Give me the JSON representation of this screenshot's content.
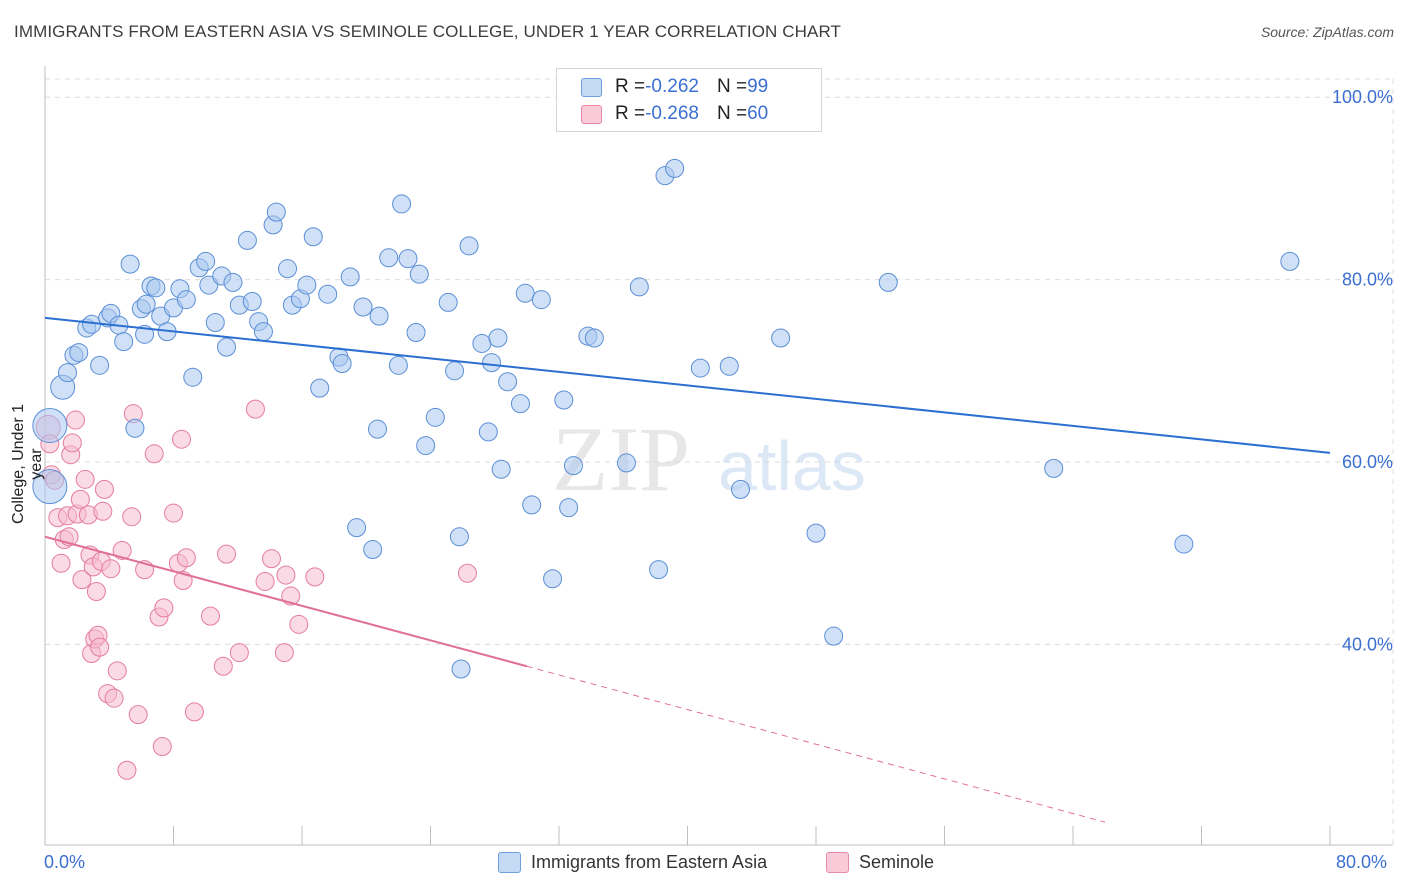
{
  "title": "IMMIGRANTS FROM EASTERN ASIA VS SEMINOLE COLLEGE, UNDER 1 YEAR CORRELATION CHART",
  "source": "Source: ZipAtlas.com",
  "watermark": {
    "zip": "ZIP",
    "atlas": "atlas"
  },
  "legend": [
    {
      "r_label": "R = ",
      "r_value": "-0.262",
      "n_label": "N = ",
      "n_value": "99",
      "color": "#a8c8f0"
    },
    {
      "r_label": "R = ",
      "r_value": "-0.268",
      "n_label": "N = ",
      "n_value": "60",
      "color": "#f5b8c8"
    }
  ],
  "series_names": [
    "Immigrants from Eastern Asia",
    "Seminole"
  ],
  "colors": {
    "blue_fill": "#aac8f0",
    "blue_stroke": "#5b8fd6",
    "blue_line": "#2b6fd1",
    "pink_fill": "#f6bccd",
    "pink_stroke": "#e57d9e",
    "pink_line": "#e0709a",
    "axis_text": "#3b6fd0",
    "grid": "#dcdcdc"
  },
  "chart_data": {
    "type": "scatter",
    "title": "IMMIGRANTS FROM EASTERN ASIA VS SEMINOLE COLLEGE, UNDER 1 YEAR CORRELATION CHART",
    "xlabel": "",
    "ylabel": "College, Under 1 year",
    "xlim": [
      0,
      80
    ],
    "ylim": [
      18,
      102
    ],
    "x_tick_labels": [
      "0.0%",
      "80.0%"
    ],
    "y_tick_values": [
      40,
      60,
      80,
      100
    ],
    "y_tick_labels": [
      "40.0%",
      "60.0%",
      "80.0%",
      "100.0%"
    ],
    "grid": true,
    "legend_position": "top-center",
    "series": [
      {
        "name": "Immigrants from Eastern Asia",
        "trend": {
          "x": [
            0,
            80
          ],
          "y": [
            75.8,
            61.0
          ]
        },
        "points": [
          [
            0.3,
            64.0
          ],
          [
            0.3,
            57.3
          ],
          [
            1.1,
            68.2
          ],
          [
            1.4,
            69.8
          ],
          [
            1.8,
            71.7
          ],
          [
            2.1,
            72.0
          ],
          [
            2.6,
            74.7
          ],
          [
            2.9,
            75.1
          ],
          [
            3.4,
            70.6
          ],
          [
            3.9,
            75.8
          ],
          [
            4.1,
            76.3
          ],
          [
            4.6,
            75.0
          ],
          [
            4.9,
            73.2
          ],
          [
            5.3,
            81.7
          ],
          [
            5.6,
            63.7
          ],
          [
            6.0,
            76.8
          ],
          [
            6.2,
            74.0
          ],
          [
            6.3,
            77.3
          ],
          [
            6.6,
            79.3
          ],
          [
            6.9,
            79.1
          ],
          [
            7.2,
            76.0
          ],
          [
            7.6,
            74.3
          ],
          [
            8.0,
            76.9
          ],
          [
            8.4,
            79.0
          ],
          [
            8.8,
            77.8
          ],
          [
            9.2,
            69.3
          ],
          [
            9.6,
            81.3
          ],
          [
            10.0,
            82.0
          ],
          [
            10.2,
            79.4
          ],
          [
            10.6,
            75.3
          ],
          [
            11.0,
            80.4
          ],
          [
            11.3,
            72.6
          ],
          [
            11.7,
            79.7
          ],
          [
            12.1,
            77.2
          ],
          [
            12.6,
            84.3
          ],
          [
            12.9,
            77.6
          ],
          [
            13.3,
            75.4
          ],
          [
            13.6,
            74.3
          ],
          [
            14.2,
            86.0
          ],
          [
            14.4,
            87.4
          ],
          [
            15.1,
            81.2
          ],
          [
            15.4,
            77.2
          ],
          [
            15.9,
            77.9
          ],
          [
            16.3,
            79.4
          ],
          [
            16.7,
            84.7
          ],
          [
            17.1,
            68.1
          ],
          [
            17.6,
            78.4
          ],
          [
            18.3,
            71.5
          ],
          [
            18.5,
            70.8
          ],
          [
            19.0,
            80.3
          ],
          [
            19.4,
            52.8
          ],
          [
            19.8,
            77.0
          ],
          [
            20.4,
            50.4
          ],
          [
            20.7,
            63.6
          ],
          [
            20.8,
            76.0
          ],
          [
            21.4,
            82.4
          ],
          [
            22.0,
            70.6
          ],
          [
            22.2,
            88.3
          ],
          [
            22.6,
            82.3
          ],
          [
            23.1,
            74.2
          ],
          [
            23.3,
            80.6
          ],
          [
            23.7,
            61.8
          ],
          [
            24.3,
            64.9
          ],
          [
            25.1,
            77.5
          ],
          [
            25.5,
            70.0
          ],
          [
            25.8,
            51.8
          ],
          [
            26.4,
            83.7
          ],
          [
            27.2,
            73.0
          ],
          [
            27.6,
            63.3
          ],
          [
            27.8,
            70.9
          ],
          [
            28.2,
            73.6
          ],
          [
            28.4,
            59.2
          ],
          [
            28.8,
            68.8
          ],
          [
            29.6,
            66.4
          ],
          [
            29.9,
            78.5
          ],
          [
            30.3,
            55.3
          ],
          [
            30.9,
            77.8
          ],
          [
            31.6,
            47.2
          ],
          [
            32.3,
            66.8
          ],
          [
            32.6,
            55.0
          ],
          [
            32.9,
            59.6
          ],
          [
            33.8,
            73.8
          ],
          [
            34.2,
            73.6
          ],
          [
            36.2,
            59.9
          ],
          [
            37.0,
            79.2
          ],
          [
            38.2,
            48.2
          ],
          [
            38.6,
            91.4
          ],
          [
            39.2,
            92.2
          ],
          [
            40.8,
            70.3
          ],
          [
            42.6,
            70.5
          ],
          [
            43.3,
            57.0
          ],
          [
            45.8,
            73.6
          ],
          [
            48.0,
            52.2
          ],
          [
            49.1,
            40.9
          ],
          [
            52.5,
            79.7
          ],
          [
            62.8,
            59.3
          ],
          [
            70.9,
            51.0
          ],
          [
            77.5,
            82.0
          ],
          [
            25.9,
            37.3
          ]
        ]
      },
      {
        "name": "Seminole",
        "trend": {
          "x": [
            0,
            30
          ],
          "y": [
            51.8,
            37.6
          ]
        },
        "trend_extension": {
          "x": [
            30,
            66
          ],
          "y": [
            37.6,
            20.5
          ]
        },
        "points": [
          [
            0.2,
            63.8
          ],
          [
            0.3,
            62.0
          ],
          [
            0.4,
            58.6
          ],
          [
            0.6,
            58.0
          ],
          [
            0.8,
            53.9
          ],
          [
            1.0,
            48.9
          ],
          [
            1.2,
            51.5
          ],
          [
            1.4,
            54.1
          ],
          [
            1.5,
            51.8
          ],
          [
            1.6,
            60.8
          ],
          [
            1.7,
            62.1
          ],
          [
            1.9,
            64.6
          ],
          [
            2.0,
            54.3
          ],
          [
            2.2,
            55.9
          ],
          [
            2.3,
            47.1
          ],
          [
            2.5,
            58.1
          ],
          [
            2.7,
            54.2
          ],
          [
            2.8,
            49.8
          ],
          [
            2.9,
            39.0
          ],
          [
            3.0,
            48.5
          ],
          [
            3.1,
            40.6
          ],
          [
            3.2,
            45.8
          ],
          [
            3.3,
            41.0
          ],
          [
            3.4,
            39.7
          ],
          [
            3.5,
            49.1
          ],
          [
            3.6,
            54.6
          ],
          [
            3.7,
            57.0
          ],
          [
            3.9,
            34.6
          ],
          [
            4.1,
            48.3
          ],
          [
            4.3,
            34.1
          ],
          [
            4.5,
            37.1
          ],
          [
            4.8,
            50.3
          ],
          [
            5.1,
            26.2
          ],
          [
            5.4,
            54.0
          ],
          [
            5.5,
            65.3
          ],
          [
            5.8,
            32.3
          ],
          [
            6.2,
            48.2
          ],
          [
            6.8,
            60.9
          ],
          [
            7.1,
            43.0
          ],
          [
            7.3,
            28.8
          ],
          [
            7.4,
            44.0
          ],
          [
            8.0,
            54.4
          ],
          [
            8.3,
            48.9
          ],
          [
            8.5,
            62.5
          ],
          [
            8.6,
            47.0
          ],
          [
            8.8,
            49.5
          ],
          [
            9.3,
            32.6
          ],
          [
            10.3,
            43.1
          ],
          [
            11.1,
            37.6
          ],
          [
            11.3,
            49.9
          ],
          [
            12.1,
            39.1
          ],
          [
            13.1,
            65.8
          ],
          [
            13.7,
            46.9
          ],
          [
            14.1,
            49.4
          ],
          [
            14.9,
            39.1
          ],
          [
            15.0,
            47.6
          ],
          [
            15.3,
            45.3
          ],
          [
            15.8,
            42.2
          ],
          [
            16.8,
            47.4
          ],
          [
            26.3,
            47.8
          ]
        ]
      }
    ]
  }
}
